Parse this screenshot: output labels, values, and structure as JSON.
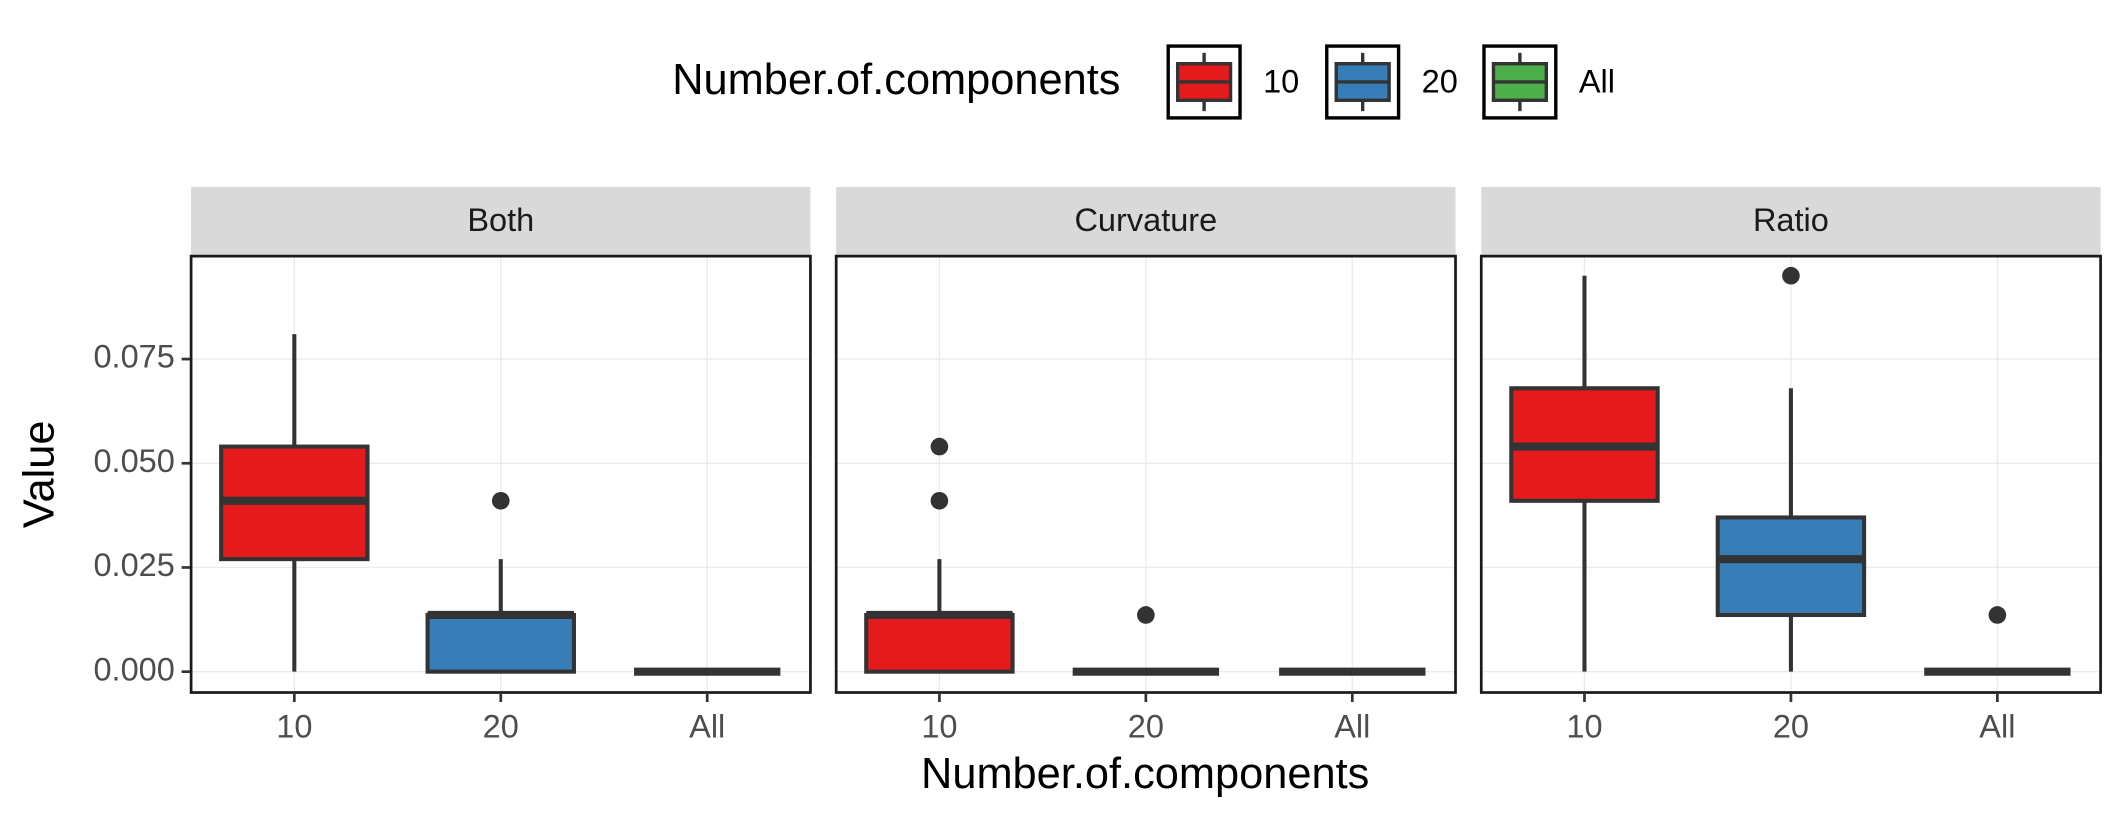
{
  "legend_title": "Number.of.components",
  "x_label": "Number.of.components",
  "y_label": "Value",
  "chart_data": [
    {
      "type": "box",
      "title": "Both",
      "categories": [
        "10",
        "20",
        "All"
      ],
      "ylim": [
        -0.005,
        0.0997
      ],
      "yticks": [
        {
          "value": 0,
          "label": "0.000"
        },
        {
          "value": 0.025,
          "label": "0.025"
        },
        {
          "value": 0.05,
          "label": "0.050"
        },
        {
          "value": 0.075,
          "label": "0.075"
        }
      ],
      "series": [
        {
          "name": "10",
          "color": "#e41a1c",
          "low": 0,
          "q1": 0.027,
          "median": 0.041,
          "q3": 0.054,
          "high": 0.081,
          "outliers": []
        },
        {
          "name": "20",
          "color": "#377eb8",
          "low": 0,
          "q1": 0,
          "median": 0.0136,
          "q3": 0.0136,
          "high": 0.027,
          "outliers": [
            0.041
          ]
        },
        {
          "name": "All",
          "color": "#4daf4a",
          "low": 0,
          "q1": 0,
          "median": 0,
          "q3": 0,
          "high": 0,
          "outliers": []
        }
      ]
    },
    {
      "type": "box",
      "title": "Curvature",
      "categories": [
        "10",
        "20",
        "All"
      ],
      "ylim": [
        -0.005,
        0.0997
      ],
      "yticks": [
        {
          "value": 0,
          "label": "0.000"
        },
        {
          "value": 0.025,
          "label": "0.025"
        },
        {
          "value": 0.05,
          "label": "0.050"
        },
        {
          "value": 0.075,
          "label": "0.075"
        }
      ],
      "series": [
        {
          "name": "10",
          "color": "#e41a1c",
          "low": 0,
          "q1": 0,
          "median": 0.0136,
          "q3": 0.0136,
          "high": 0.027,
          "outliers": [
            0.041,
            0.054
          ]
        },
        {
          "name": "20",
          "color": "#377eb8",
          "low": 0,
          "q1": 0,
          "median": 0,
          "q3": 0,
          "high": 0,
          "outliers": [
            0.0136
          ]
        },
        {
          "name": "All",
          "color": "#4daf4a",
          "low": 0,
          "q1": 0,
          "median": 0,
          "q3": 0,
          "high": 0,
          "outliers": []
        }
      ]
    },
    {
      "type": "box",
      "title": "Ratio",
      "categories": [
        "10",
        "20",
        "All"
      ],
      "ylim": [
        -0.005,
        0.0997
      ],
      "yticks": [
        {
          "value": 0,
          "label": "0.000"
        },
        {
          "value": 0.025,
          "label": "0.025"
        },
        {
          "value": 0.05,
          "label": "0.050"
        },
        {
          "value": 0.075,
          "label": "0.075"
        }
      ],
      "series": [
        {
          "name": "10",
          "color": "#e41a1c",
          "low": 0,
          "q1": 0.041,
          "median": 0.054,
          "q3": 0.068,
          "high": 0.095,
          "outliers": []
        },
        {
          "name": "20",
          "color": "#377eb8",
          "low": 0,
          "q1": 0.0136,
          "median": 0.027,
          "q3": 0.037,
          "high": 0.068,
          "outliers": [
            0.095
          ]
        },
        {
          "name": "All",
          "color": "#4daf4a",
          "low": 0,
          "q1": 0,
          "median": 0,
          "q3": 0,
          "high": 0,
          "outliers": [
            0.0136
          ]
        }
      ]
    }
  ]
}
